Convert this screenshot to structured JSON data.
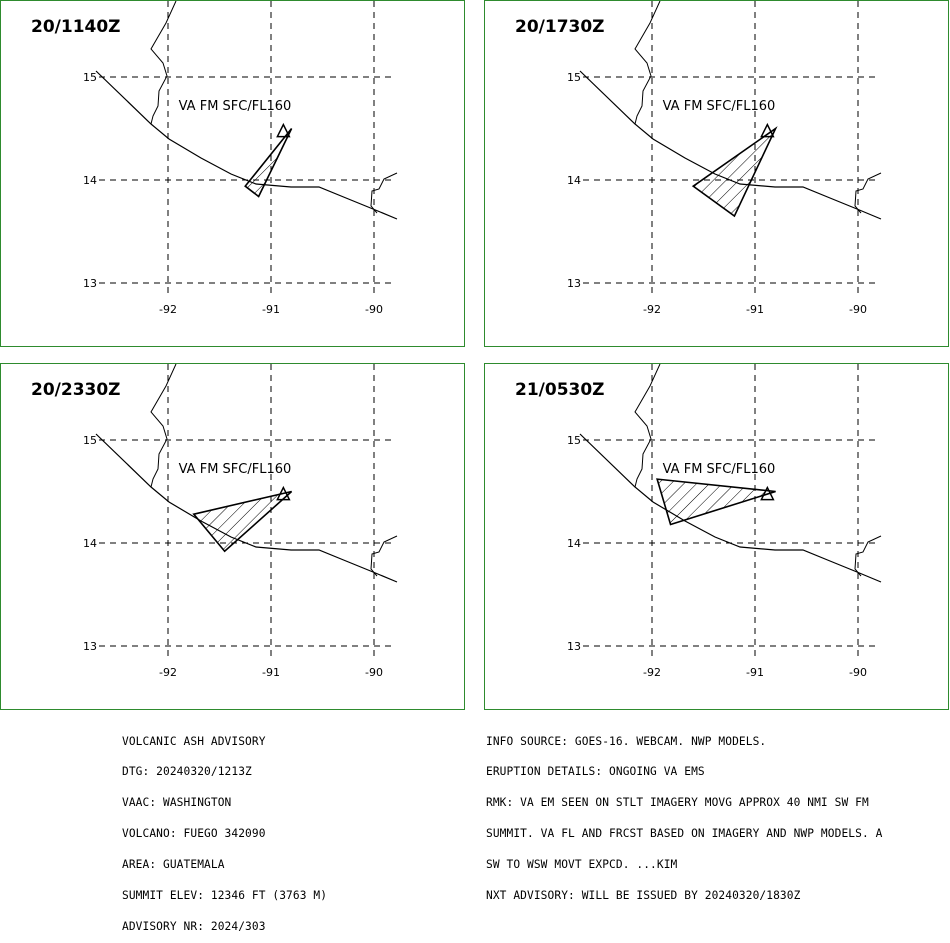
{
  "panels": [
    {
      "time": "20/1140Z",
      "label": "VA FM SFC/FL160",
      "ash_polygon": [
        [
          -91.25,
          13.94
        ],
        [
          -90.8,
          14.5
        ],
        [
          -91.12,
          13.84
        ]
      ]
    },
    {
      "time": "20/1730Z",
      "label": "VA FM SFC/FL160",
      "ash_polygon": [
        [
          -91.6,
          13.94
        ],
        [
          -90.8,
          14.5
        ],
        [
          -91.2,
          13.65
        ]
      ]
    },
    {
      "time": "20/2330Z",
      "label": "VA FM SFC/FL160",
      "ash_polygon": [
        [
          -91.75,
          14.28
        ],
        [
          -90.8,
          14.5
        ],
        [
          -91.45,
          13.92
        ]
      ]
    },
    {
      "time": "21/0530Z",
      "label": "VA FM SFC/FL160",
      "ash_polygon": [
        [
          -91.95,
          14.62
        ],
        [
          -90.8,
          14.5
        ],
        [
          -91.82,
          14.18
        ]
      ]
    }
  ],
  "map": {
    "lat_ticks": [
      "15",
      "14",
      "13"
    ],
    "lon_ticks": [
      "-92",
      "-91",
      "-90"
    ],
    "volcano_symbol": "volcano-triangle-icon",
    "volcano": [
      -90.88,
      14.47
    ],
    "colors": {
      "frame": "#2e8b2e",
      "lines": "#000000"
    }
  },
  "advisory_left": [
    "VOLCANIC ASH ADVISORY",
    "DTG: 20240320/1213Z",
    "VAAC: WASHINGTON",
    "VOLCANO: FUEGO 342090",
    "AREA: GUATEMALA",
    "SUMMIT ELEV: 12346 FT (3763 M)",
    "ADVISORY NR: 2024/303"
  ],
  "advisory_right": [
    "INFO SOURCE: GOES-16. WEBCAM. NWP MODELS.",
    "ERUPTION DETAILS: ONGOING VA EMS",
    "RMK: VA EM SEEN ON STLT IMAGERY MOVG APPROX 40 NMI SW FM",
    "SUMMIT. VA FL AND FRCST BASED ON IMAGERY AND NWP MODELS. A",
    "SW TO WSW MOVT EXPCD. ...KIM",
    "NXT ADVISORY: WILL BE ISSUED BY 20240320/1830Z"
  ]
}
